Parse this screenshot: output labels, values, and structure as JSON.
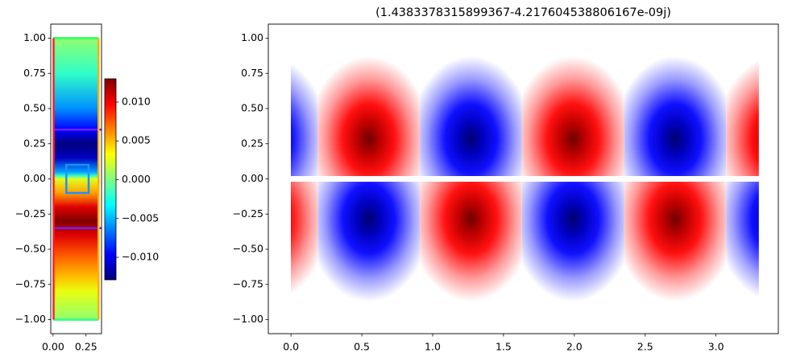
{
  "chart_data": [
    {
      "type": "heatmap",
      "colormap": "jet",
      "xlim": [
        -0.0175,
        0.3675
      ],
      "ylim": [
        -1.1,
        1.1
      ],
      "xticks": [
        {
          "value": 0,
          "label": "0.00"
        },
        0.25
      ],
      "yticks": [
        {
          "value": -1,
          "label": "−1.00"
        },
        {
          "value": -0.75,
          "label": "−0.75"
        },
        {
          "value": -0.5,
          "label": "−0.50"
        },
        {
          "value": -0.25,
          "label": "−0.25"
        },
        {
          "value": 0,
          "label": "0.00"
        },
        0.25,
        {
          "value": 0.5,
          "label": "0.50"
        },
        0.75,
        {
          "value": 1,
          "label": "1.00"
        }
      ],
      "colorbar": {
        "clim": [
          -0.013,
          0.013
        ],
        "ticks": [
          {
            "value": -0.01,
            "label": "−0.010"
          },
          {
            "value": -0.005,
            "label": "−0.005"
          },
          {
            "value": 0,
            "label": "0.000"
          },
          {
            "value": 0.005,
            "label": "0.005"
          },
          {
            "value": 0.01,
            "label": "0.010"
          }
        ]
      }
    },
    {
      "type": "heatmap",
      "colormap": "seismic",
      "title": "(1.4383378315899367-4.217604538806167e-09j)",
      "xlim": [
        -0.16,
        3.44
      ],
      "ylim": [
        -1.1,
        1.1
      ],
      "xticks": [
        {
          "value": 0,
          "label": "0.0"
        },
        0.5,
        {
          "value": 1,
          "label": "1.0"
        },
        1.5,
        {
          "value": 2,
          "label": "2.0"
        },
        2.5,
        {
          "value": 3,
          "label": "3.0"
        }
      ],
      "yticks": [
        {
          "value": -1,
          "label": "−1.00"
        },
        {
          "value": -0.75,
          "label": "−0.75"
        },
        {
          "value": -0.5,
          "label": "−0.50"
        },
        {
          "value": -0.25,
          "label": "−0.25"
        },
        {
          "value": 0,
          "label": "0.00"
        },
        0.25,
        {
          "value": 0.5,
          "label": "0.50"
        },
        0.75,
        {
          "value": 1,
          "label": "1.00"
        }
      ]
    }
  ]
}
